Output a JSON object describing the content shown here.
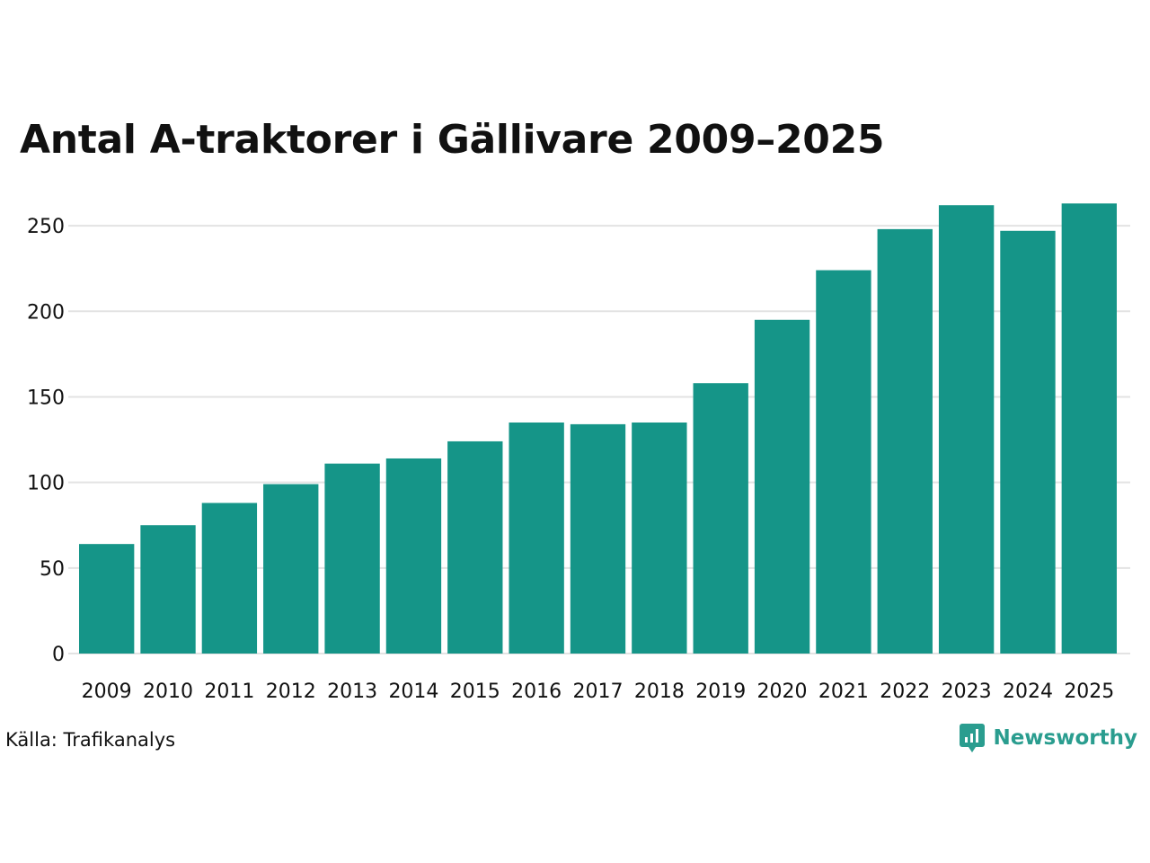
{
  "chart_data": {
    "type": "bar",
    "title": "Antal A-traktorer i Gällivare 2009–2025",
    "categories": [
      "2009",
      "2010",
      "2011",
      "2012",
      "2013",
      "2014",
      "2015",
      "2016",
      "2017",
      "2018",
      "2019",
      "2020",
      "2021",
      "2022",
      "2023",
      "2024",
      "2025"
    ],
    "values": [
      64,
      75,
      88,
      99,
      111,
      114,
      124,
      135,
      134,
      135,
      158,
      195,
      224,
      248,
      262,
      247,
      263
    ],
    "ylim": [
      0,
      270
    ],
    "yticks": [
      0,
      50,
      100,
      150,
      200,
      250
    ],
    "xlabel": "",
    "ylabel": "",
    "grid": true,
    "bar_color": "#159588",
    "grid_color": "#e3e3e3"
  },
  "source": "Källa: Trafikanalys",
  "brand": {
    "name": "Newsworthy",
    "icon": "newsworthy-logo-icon",
    "color": "#2a9d8f"
  }
}
